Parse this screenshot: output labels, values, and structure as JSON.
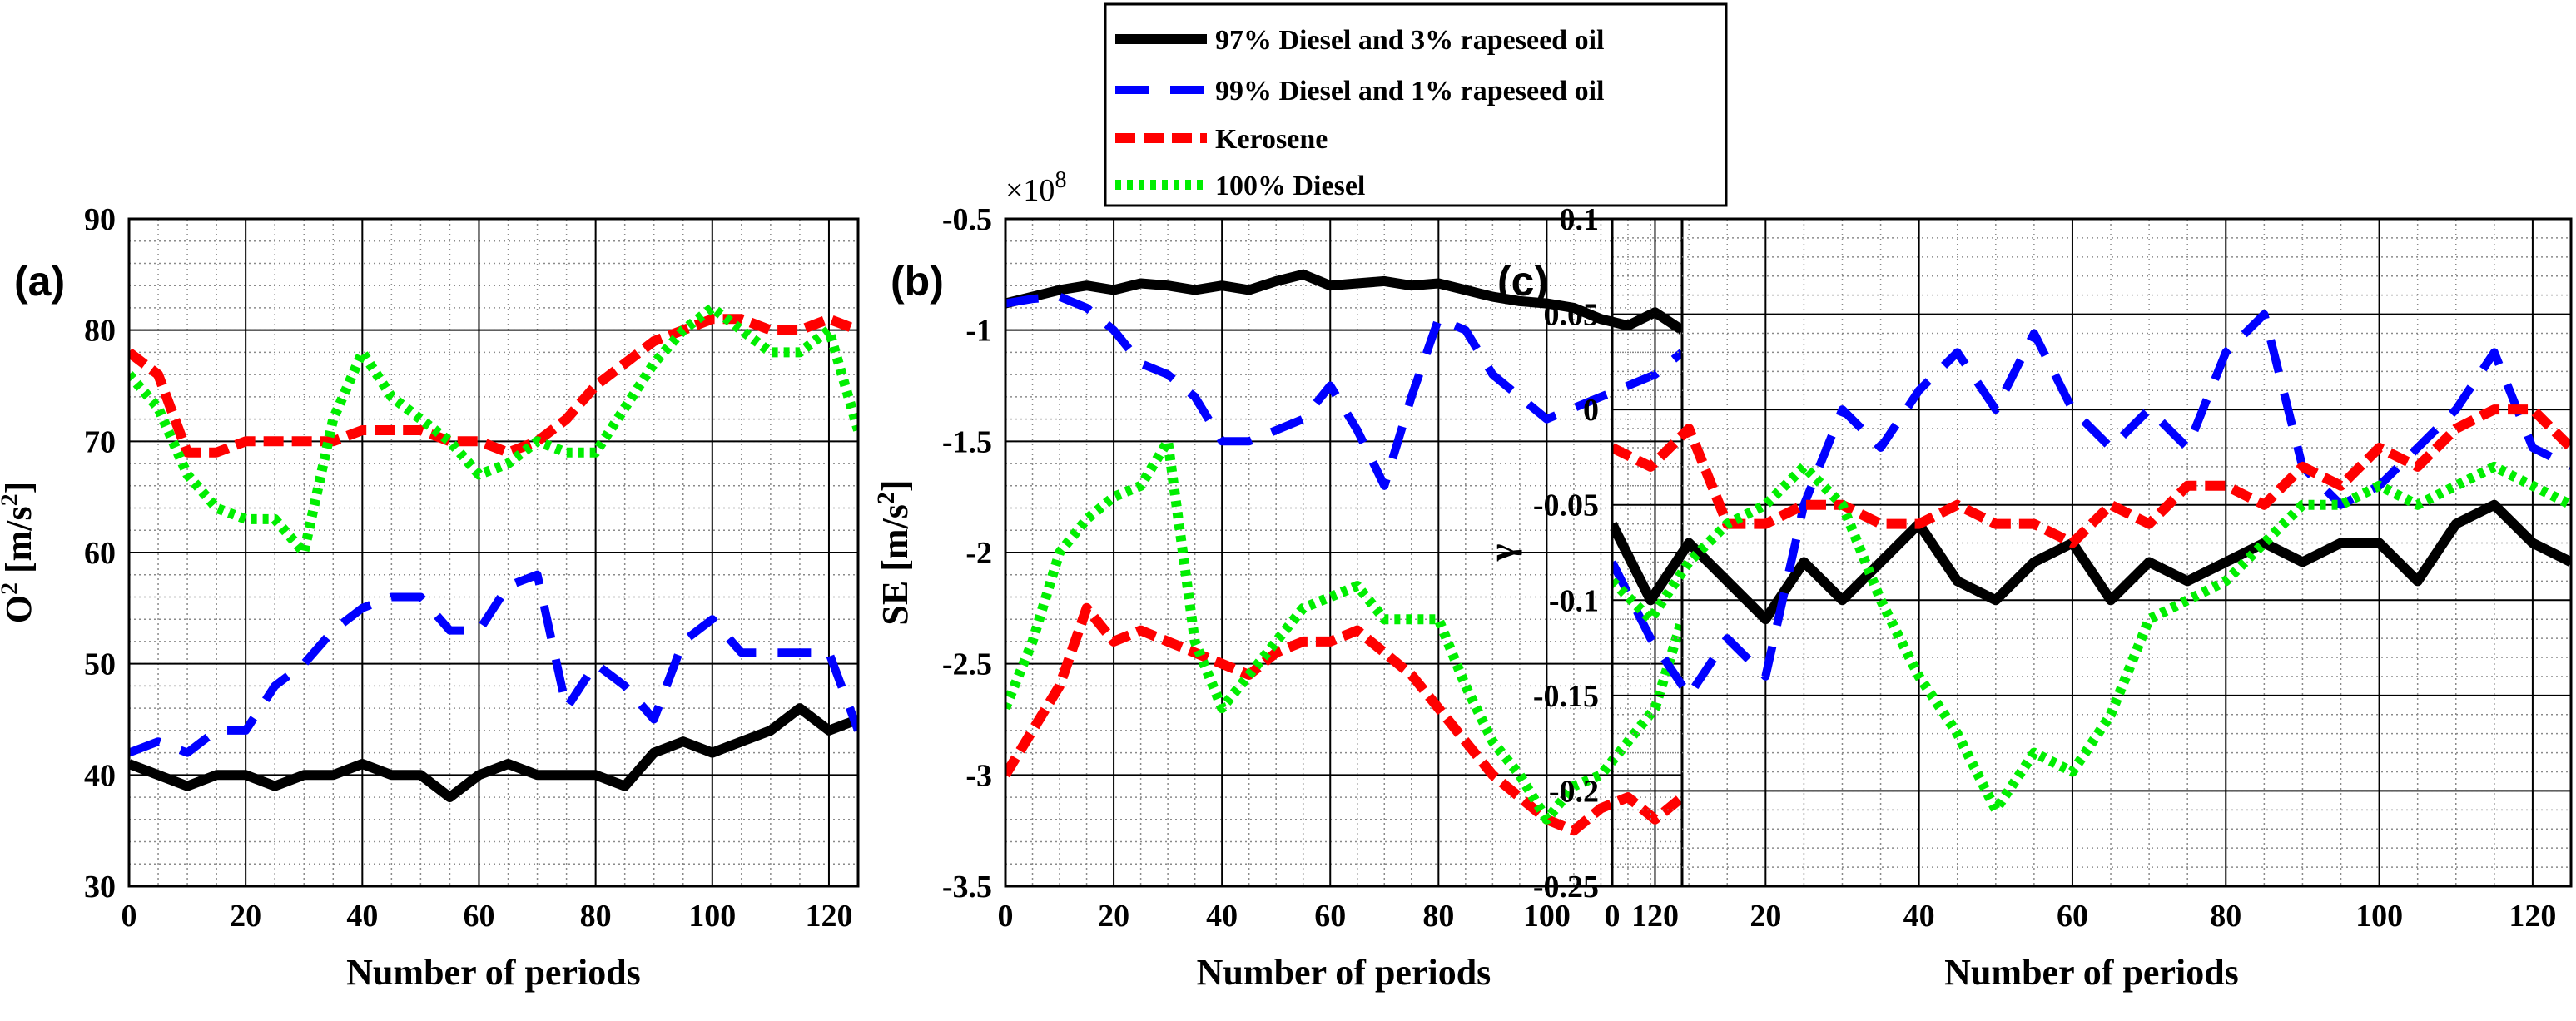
{
  "series_styles": [
    {
      "name": "97% Diesel and 3% rapeseed oil",
      "color": "#000000",
      "dash": "none",
      "width": 12
    },
    {
      "name": "99% Diesel and 1% rapeseed oil",
      "color": "#0000ff",
      "dash": "40 26",
      "width": 10
    },
    {
      "name": "Kerosene",
      "color": "#ff0000",
      "dash": "24 10",
      "width": 12
    },
    {
      "name": "100% Diesel",
      "color": "#00ee00",
      "dash": "7 7",
      "width": 12
    }
  ],
  "legend": {
    "entries": [
      "97% Diesel and 3% rapeseed oil",
      "99% Diesel and 1% rapeseed oil",
      "Kerosene",
      "100% Diesel"
    ]
  },
  "chart_data": [
    {
      "type": "line",
      "panel_label": "(a)",
      "title": "",
      "xlabel": "Number of periods",
      "ylabel_main": "O",
      "ylabel_sup": "2",
      "ylabel_unit": " [m/s",
      "ylabel_unit_sup": "2",
      "ylabel_end": "]",
      "xlim": [
        0,
        125
      ],
      "ylim": [
        30,
        90
      ],
      "xticks": [
        0,
        20,
        40,
        60,
        80,
        100,
        120
      ],
      "xtick_labels": [
        "0",
        "20",
        "40",
        "60",
        "80",
        "100",
        "120"
      ],
      "yticks": [
        30,
        40,
        50,
        60,
        70,
        80,
        90
      ],
      "ytick_labels": [
        "30",
        "40",
        "50",
        "60",
        "70",
        "80",
        "90"
      ],
      "grid": true,
      "series": [
        {
          "name": "97% Diesel and 3% rapeseed oil",
          "x": [
            0,
            5,
            10,
            15,
            20,
            25,
            30,
            35,
            40,
            45,
            50,
            55,
            60,
            65,
            70,
            75,
            80,
            85,
            90,
            95,
            100,
            105,
            110,
            115,
            120,
            125
          ],
          "y": [
            41,
            40,
            39,
            40,
            40,
            39,
            40,
            40,
            41,
            40,
            40,
            38,
            40,
            41,
            40,
            40,
            40,
            39,
            42,
            43,
            42,
            43,
            44,
            46,
            44,
            45
          ]
        },
        {
          "name": "99% Diesel and 1% rapeseed oil",
          "x": [
            0,
            5,
            10,
            15,
            20,
            25,
            30,
            35,
            40,
            45,
            50,
            55,
            60,
            65,
            70,
            75,
            80,
            85,
            90,
            95,
            100,
            105,
            110,
            115,
            120,
            125
          ],
          "y": [
            42,
            43,
            42,
            44,
            44,
            48,
            50,
            53,
            55,
            56,
            56,
            53,
            53,
            57,
            58,
            46,
            50,
            48,
            45,
            52,
            54,
            51,
            51,
            51,
            51,
            44
          ]
        },
        {
          "name": "Kerosene",
          "x": [
            0,
            5,
            10,
            15,
            20,
            25,
            30,
            35,
            40,
            45,
            50,
            55,
            60,
            65,
            70,
            75,
            80,
            85,
            90,
            95,
            100,
            105,
            110,
            115,
            120,
            125
          ],
          "y": [
            78,
            76,
            69,
            69,
            70,
            70,
            70,
            70,
            71,
            71,
            71,
            70,
            70,
            69,
            70,
            72,
            75,
            77,
            79,
            80,
            81,
            81,
            80,
            80,
            81,
            80
          ]
        },
        {
          "name": "100% Diesel",
          "x": [
            0,
            5,
            10,
            15,
            20,
            25,
            30,
            35,
            40,
            45,
            50,
            55,
            60,
            65,
            70,
            75,
            80,
            85,
            90,
            95,
            100,
            105,
            110,
            115,
            120,
            125
          ],
          "y": [
            76,
            73,
            67,
            64,
            63,
            63,
            60,
            72,
            78,
            74,
            72,
            70,
            67,
            68,
            70,
            69,
            69,
            73,
            77,
            80,
            82,
            80,
            78,
            78,
            80,
            71
          ]
        }
      ]
    },
    {
      "type": "line",
      "panel_label": "(b)",
      "title": "",
      "xlabel": "Number of periods",
      "ylabel_main": "SE",
      "ylabel_sup": "",
      "ylabel_unit": " [m/s",
      "ylabel_unit_sup": "2",
      "ylabel_end": "]",
      "multiplier_base": "×10",
      "multiplier_exp": "8",
      "xlim": [
        0,
        125
      ],
      "ylim": [
        -3.5,
        -0.5
      ],
      "xticks": [
        0,
        20,
        40,
        60,
        80,
        100,
        120
      ],
      "xtick_labels": [
        "0",
        "20",
        "40",
        "60",
        "80",
        "100",
        "120"
      ],
      "yticks": [
        -3.5,
        -3,
        -2.5,
        -2,
        -1.5,
        -1,
        -0.5
      ],
      "ytick_labels": [
        "-3.5",
        "-3",
        "-2.5",
        "-2",
        "-1.5",
        "-1",
        "-0.5"
      ],
      "grid": true,
      "series": [
        {
          "name": "97% Diesel and 3% rapeseed oil",
          "x": [
            0,
            5,
            10,
            15,
            20,
            25,
            30,
            35,
            40,
            45,
            50,
            55,
            60,
            65,
            70,
            75,
            80,
            85,
            90,
            95,
            100,
            105,
            110,
            115,
            120,
            125
          ],
          "y": [
            -0.88,
            -0.85,
            -0.82,
            -0.8,
            -0.82,
            -0.79,
            -0.8,
            -0.82,
            -0.8,
            -0.82,
            -0.78,
            -0.75,
            -0.8,
            -0.79,
            -0.78,
            -0.8,
            -0.79,
            -0.82,
            -0.85,
            -0.87,
            -0.88,
            -0.9,
            -0.95,
            -0.98,
            -0.92,
            -1.0
          ]
        },
        {
          "name": "99% Diesel and 1% rapeseed oil",
          "x": [
            0,
            5,
            10,
            15,
            20,
            25,
            30,
            35,
            40,
            45,
            50,
            55,
            60,
            65,
            70,
            75,
            80,
            85,
            90,
            95,
            100,
            105,
            110,
            115,
            120,
            125
          ],
          "y": [
            -0.88,
            -0.86,
            -0.85,
            -0.9,
            -1.0,
            -1.15,
            -1.2,
            -1.3,
            -1.5,
            -1.5,
            -1.45,
            -1.4,
            -1.25,
            -1.45,
            -1.7,
            -1.3,
            -0.95,
            -1.0,
            -1.2,
            -1.3,
            -1.4,
            -1.35,
            -1.3,
            -1.25,
            -1.2,
            -1.1
          ]
        },
        {
          "name": "Kerosene",
          "x": [
            0,
            5,
            10,
            15,
            20,
            25,
            30,
            35,
            40,
            45,
            50,
            55,
            60,
            65,
            70,
            75,
            80,
            85,
            90,
            95,
            100,
            105,
            110,
            115,
            120,
            125
          ],
          "y": [
            -3.0,
            -2.8,
            -2.6,
            -2.25,
            -2.4,
            -2.35,
            -2.4,
            -2.45,
            -2.5,
            -2.55,
            -2.45,
            -2.4,
            -2.4,
            -2.35,
            -2.45,
            -2.55,
            -2.7,
            -2.85,
            -3.0,
            -3.1,
            -3.2,
            -3.25,
            -3.15,
            -3.1,
            -3.2,
            -3.1
          ]
        },
        {
          "name": "100% Diesel",
          "x": [
            0,
            5,
            10,
            15,
            20,
            25,
            30,
            35,
            40,
            45,
            50,
            55,
            60,
            65,
            70,
            75,
            80,
            85,
            90,
            95,
            100,
            105,
            110,
            115,
            120,
            125
          ],
          "y": [
            -2.7,
            -2.4,
            -2.0,
            -1.85,
            -1.75,
            -1.7,
            -1.5,
            -2.4,
            -2.7,
            -2.55,
            -2.4,
            -2.25,
            -2.2,
            -2.15,
            -2.3,
            -2.3,
            -2.3,
            -2.6,
            -2.85,
            -3.0,
            -3.2,
            -3.05,
            -3.0,
            -2.85,
            -2.7,
            -2.3
          ]
        }
      ]
    },
    {
      "type": "line",
      "panel_label": "(c)",
      "title": "",
      "xlabel": "Number of periods",
      "ylabel_main": "γ",
      "ylabel_sup": "",
      "ylabel_unit": "",
      "ylabel_unit_sup": "",
      "ylabel_end": "",
      "xlim": [
        0,
        125
      ],
      "ylim": [
        -0.25,
        0.1
      ],
      "xticks": [
        0,
        20,
        40,
        60,
        80,
        100,
        120
      ],
      "xtick_labels": [
        "0",
        "20",
        "40",
        "60",
        "80",
        "100",
        "120"
      ],
      "yticks": [
        -0.25,
        -0.2,
        -0.15,
        -0.1,
        -0.05,
        0,
        0.05,
        0.1
      ],
      "ytick_labels": [
        "-0.25",
        "-0.2",
        "-0.15",
        "-0.1",
        "-0.05",
        "0",
        "0.05",
        "0.1"
      ],
      "grid": true,
      "series": [
        {
          "name": "97% Diesel and 3% rapeseed oil",
          "x": [
            0,
            5,
            10,
            15,
            20,
            25,
            30,
            35,
            40,
            45,
            50,
            55,
            60,
            65,
            70,
            75,
            80,
            85,
            90,
            95,
            100,
            105,
            110,
            115,
            120,
            125
          ],
          "y": [
            -0.06,
            -0.1,
            -0.07,
            -0.09,
            -0.11,
            -0.08,
            -0.1,
            -0.08,
            -0.06,
            -0.09,
            -0.1,
            -0.08,
            -0.07,
            -0.1,
            -0.08,
            -0.09,
            -0.08,
            -0.07,
            -0.08,
            -0.07,
            -0.07,
            -0.09,
            -0.06,
            -0.05,
            -0.07,
            -0.08
          ]
        },
        {
          "name": "99% Diesel and 1% rapeseed oil",
          "x": [
            0,
            5,
            10,
            15,
            20,
            25,
            30,
            35,
            40,
            45,
            50,
            55,
            60,
            65,
            70,
            75,
            80,
            85,
            90,
            95,
            100,
            105,
            110,
            115,
            120,
            125
          ],
          "y": [
            -0.08,
            -0.12,
            -0.15,
            -0.12,
            -0.14,
            -0.05,
            0.0,
            -0.02,
            0.01,
            0.03,
            0.0,
            0.04,
            0.0,
            -0.02,
            0.0,
            -0.02,
            0.03,
            0.05,
            -0.03,
            -0.05,
            -0.04,
            -0.02,
            0.0,
            0.03,
            -0.02,
            -0.03
          ]
        },
        {
          "name": "Kerosene",
          "x": [
            0,
            5,
            10,
            15,
            20,
            25,
            30,
            35,
            40,
            45,
            50,
            55,
            60,
            65,
            70,
            75,
            80,
            85,
            90,
            95,
            100,
            105,
            110,
            115,
            120,
            125
          ],
          "y": [
            -0.02,
            -0.03,
            -0.01,
            -0.06,
            -0.06,
            -0.05,
            -0.05,
            -0.06,
            -0.06,
            -0.05,
            -0.06,
            -0.06,
            -0.07,
            -0.05,
            -0.06,
            -0.04,
            -0.04,
            -0.05,
            -0.03,
            -0.04,
            -0.02,
            -0.03,
            -0.01,
            0.0,
            0.0,
            -0.02
          ]
        },
        {
          "name": "100% Diesel",
          "x": [
            0,
            5,
            10,
            15,
            20,
            25,
            30,
            35,
            40,
            45,
            50,
            55,
            60,
            65,
            70,
            75,
            80,
            85,
            90,
            95,
            100,
            105,
            110,
            115,
            120,
            125
          ],
          "y": [
            -0.09,
            -0.11,
            -0.08,
            -0.06,
            -0.05,
            -0.03,
            -0.05,
            -0.1,
            -0.14,
            -0.17,
            -0.21,
            -0.18,
            -0.19,
            -0.16,
            -0.11,
            -0.1,
            -0.09,
            -0.07,
            -0.05,
            -0.05,
            -0.04,
            -0.05,
            -0.04,
            -0.03,
            -0.04,
            -0.05
          ]
        }
      ]
    }
  ]
}
